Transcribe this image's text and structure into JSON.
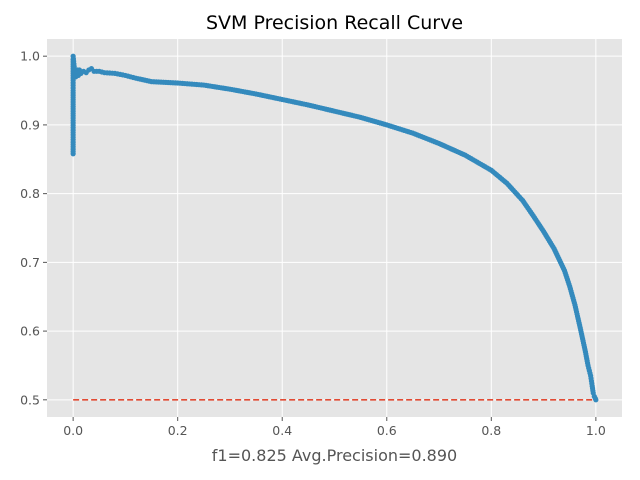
{
  "chart_data": {
    "type": "line",
    "title": "SVM Precision Recall Curve",
    "xlabel": "f1=0.825  Avg.Precision=0.890",
    "ylabel": "",
    "xlim": [
      -0.05,
      1.05
    ],
    "ylim": [
      0.475,
      1.025
    ],
    "xticks": [
      "0.0",
      "0.2",
      "0.4",
      "0.6",
      "0.8",
      "1.0"
    ],
    "yticks": [
      "0.5",
      "0.6",
      "0.7",
      "0.8",
      "0.9",
      "1.0"
    ],
    "grid": true,
    "colors": {
      "background": "#e5e5e5",
      "grid": "#ffffff",
      "curve": "#348abd",
      "baseline": "#e24a33"
    },
    "series": [
      {
        "style": "line-with-markers",
        "x": [
          0.0,
          0.0,
          0.0,
          0.0,
          0.0,
          0.0,
          0.0,
          0.0,
          0.0,
          0.0,
          0.002,
          0.003,
          0.005,
          0.008,
          0.01,
          0.012,
          0.015,
          0.02,
          0.025,
          0.03,
          0.035,
          0.04,
          0.05,
          0.06,
          0.08,
          0.1,
          0.12,
          0.15,
          0.2,
          0.25,
          0.3,
          0.35,
          0.4,
          0.45,
          0.5,
          0.55,
          0.6,
          0.65,
          0.7,
          0.75,
          0.8,
          0.83,
          0.86,
          0.88,
          0.9,
          0.92,
          0.94,
          0.95,
          0.96,
          0.97,
          0.98,
          0.985,
          0.99,
          0.993,
          0.995,
          0.997,
          0.999,
          1.0
        ],
        "y": [
          0.858,
          0.875,
          0.91,
          0.93,
          0.95,
          0.965,
          0.975,
          0.985,
          0.995,
          1.0,
          0.985,
          0.975,
          0.97,
          0.98,
          0.972,
          0.98,
          0.975,
          0.978,
          0.976,
          0.98,
          0.982,
          0.978,
          0.978,
          0.976,
          0.975,
          0.972,
          0.968,
          0.963,
          0.961,
          0.958,
          0.952,
          0.945,
          0.937,
          0.929,
          0.92,
          0.911,
          0.9,
          0.888,
          0.873,
          0.856,
          0.834,
          0.815,
          0.79,
          0.768,
          0.745,
          0.72,
          0.688,
          0.665,
          0.638,
          0.605,
          0.57,
          0.55,
          0.535,
          0.52,
          0.51,
          0.505,
          0.502,
          0.5
        ]
      },
      {
        "style": "dashed",
        "x": [
          0.0,
          1.0
        ],
        "y": [
          0.5,
          0.5
        ]
      }
    ]
  }
}
